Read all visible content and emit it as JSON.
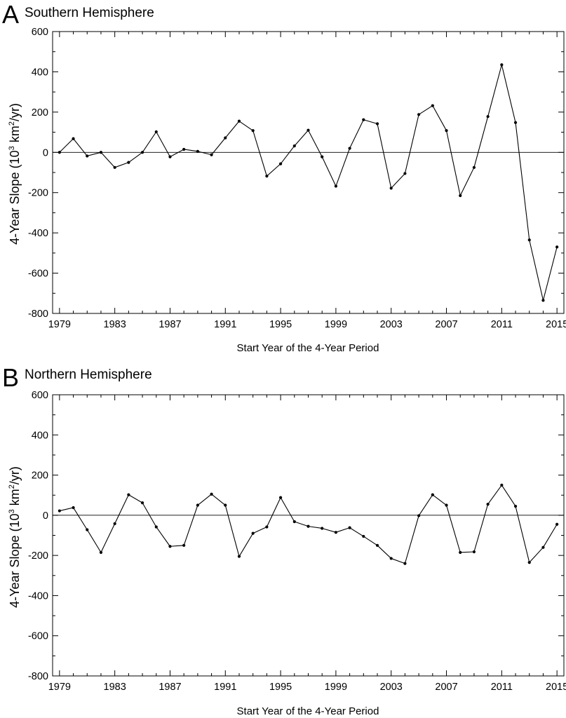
{
  "chart_data": [
    {
      "type": "line",
      "panel": "A",
      "title": "Southern Hemisphere",
      "xlabel": "Start Year of the 4-Year Period",
      "ylabel_main": "4-Year Slope (10",
      "ylabel_sup1": "3",
      "ylabel_mid": " km",
      "ylabel_sup2": "2",
      "ylabel_end": "/yr)",
      "xlim": [
        1978.5,
        2015.5
      ],
      "ylim": [
        -800,
        600
      ],
      "xticks": [
        1979,
        1983,
        1987,
        1991,
        1995,
        1999,
        2003,
        2007,
        2011,
        2015
      ],
      "yticks": [
        -800,
        -600,
        -400,
        -200,
        0,
        200,
        400,
        600
      ],
      "x": [
        1979,
        1980,
        1981,
        1982,
        1983,
        1984,
        1985,
        1986,
        1987,
        1988,
        1989,
        1990,
        1991,
        1992,
        1993,
        1994,
        1995,
        1996,
        1997,
        1998,
        1999,
        2000,
        2001,
        2002,
        2003,
        2004,
        2005,
        2006,
        2007,
        2008,
        2009,
        2010,
        2011,
        2012,
        2013,
        2014,
        2015
      ],
      "values": [
        0,
        68,
        -18,
        0,
        -75,
        -50,
        0,
        102,
        -22,
        15,
        5,
        -12,
        72,
        155,
        108,
        -118,
        -57,
        32,
        110,
        -22,
        -168,
        20,
        162,
        142,
        -178,
        -105,
        188,
        232,
        108,
        -215,
        -75,
        178,
        435,
        148,
        -435,
        -735,
        -470
      ],
      "zero_line": true,
      "grid": false
    },
    {
      "type": "line",
      "panel": "B",
      "title": "Northern Hemisphere",
      "xlabel": "Start Year of the 4-Year Period",
      "ylabel_main": "4-Year Slope (10",
      "ylabel_sup1": "3",
      "ylabel_mid": " km",
      "ylabel_sup2": "2",
      "ylabel_end": "/yr)",
      "xlim": [
        1978.5,
        2015.5
      ],
      "ylim": [
        -800,
        600
      ],
      "xticks": [
        1979,
        1983,
        1987,
        1991,
        1995,
        1999,
        2003,
        2007,
        2011,
        2015
      ],
      "yticks": [
        -800,
        -600,
        -400,
        -200,
        0,
        200,
        400,
        600
      ],
      "x": [
        1979,
        1980,
        1981,
        1982,
        1983,
        1984,
        1985,
        1986,
        1987,
        1988,
        1989,
        1990,
        1991,
        1992,
        1993,
        1994,
        1995,
        1996,
        1997,
        1998,
        1999,
        2000,
        2001,
        2002,
        2003,
        2004,
        2005,
        2006,
        2007,
        2008,
        2009,
        2010,
        2011,
        2012,
        2013,
        2014,
        2015
      ],
      "values": [
        22,
        38,
        -72,
        -185,
        -42,
        102,
        62,
        -58,
        -155,
        -150,
        50,
        105,
        50,
        -205,
        -90,
        -58,
        88,
        -32,
        -55,
        -65,
        -85,
        -62,
        -105,
        -150,
        -215,
        -240,
        -2,
        102,
        50,
        -185,
        -182,
        55,
        150,
        45,
        -235,
        -160,
        -45
      ],
      "zero_line": true,
      "grid": false
    }
  ]
}
